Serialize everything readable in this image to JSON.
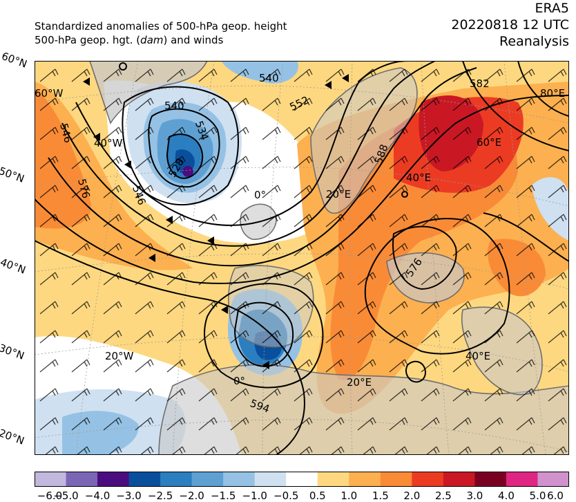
{
  "header": {
    "line1": "Standardized anomalies of 500-hPa geop. height",
    "line2_prefix": "500-hPa geop. hgt. (",
    "line2_unit": "dam",
    "line2_suffix": ") and winds",
    "dataset": "ERA5",
    "datetime": "20220818 12 UTC",
    "product": "Reanalysis"
  },
  "map": {
    "lat_edge_labels": [
      "60°N",
      "50°N",
      "40°N",
      "30°N",
      "20°N"
    ],
    "grid_labels": [
      "60°W",
      "40°W",
      "20°W",
      "0°",
      "0°",
      "20°E",
      "20°E",
      "40°E",
      "40°E",
      "60°E",
      "80°E"
    ],
    "contour_labels": [
      "540",
      "546",
      "540",
      "534",
      "528",
      "552",
      "546",
      "576",
      "588",
      "576",
      "594",
      "582"
    ],
    "colors": {
      "ocean_bg": "#ffffff",
      "land": "#c8c8c8",
      "coast": "#6e6e6e",
      "contour": "#000000"
    }
  },
  "colorbar": {
    "ticks": [
      "−6.0",
      "−5.0",
      "−4.0",
      "−3.0",
      "−2.5",
      "−2.0",
      "−1.5",
      "−1.0",
      "−0.5",
      "0.5",
      "1.0",
      "1.5",
      "2.0",
      "2.5",
      "3.0",
      "4.0",
      "5.0",
      "6.0"
    ],
    "colors": [
      "#c2b7dc",
      "#7b66b5",
      "#4b0c80",
      "#0a4f9c",
      "#2b7ec0",
      "#5fa0d3",
      "#95c2e4",
      "#cfe0f1",
      "#ffffff",
      "#fed880",
      "#fdb04f",
      "#f98b37",
      "#ec3b23",
      "#c91824",
      "#7a0021",
      "#df2583",
      "#cf92cc"
    ]
  }
}
